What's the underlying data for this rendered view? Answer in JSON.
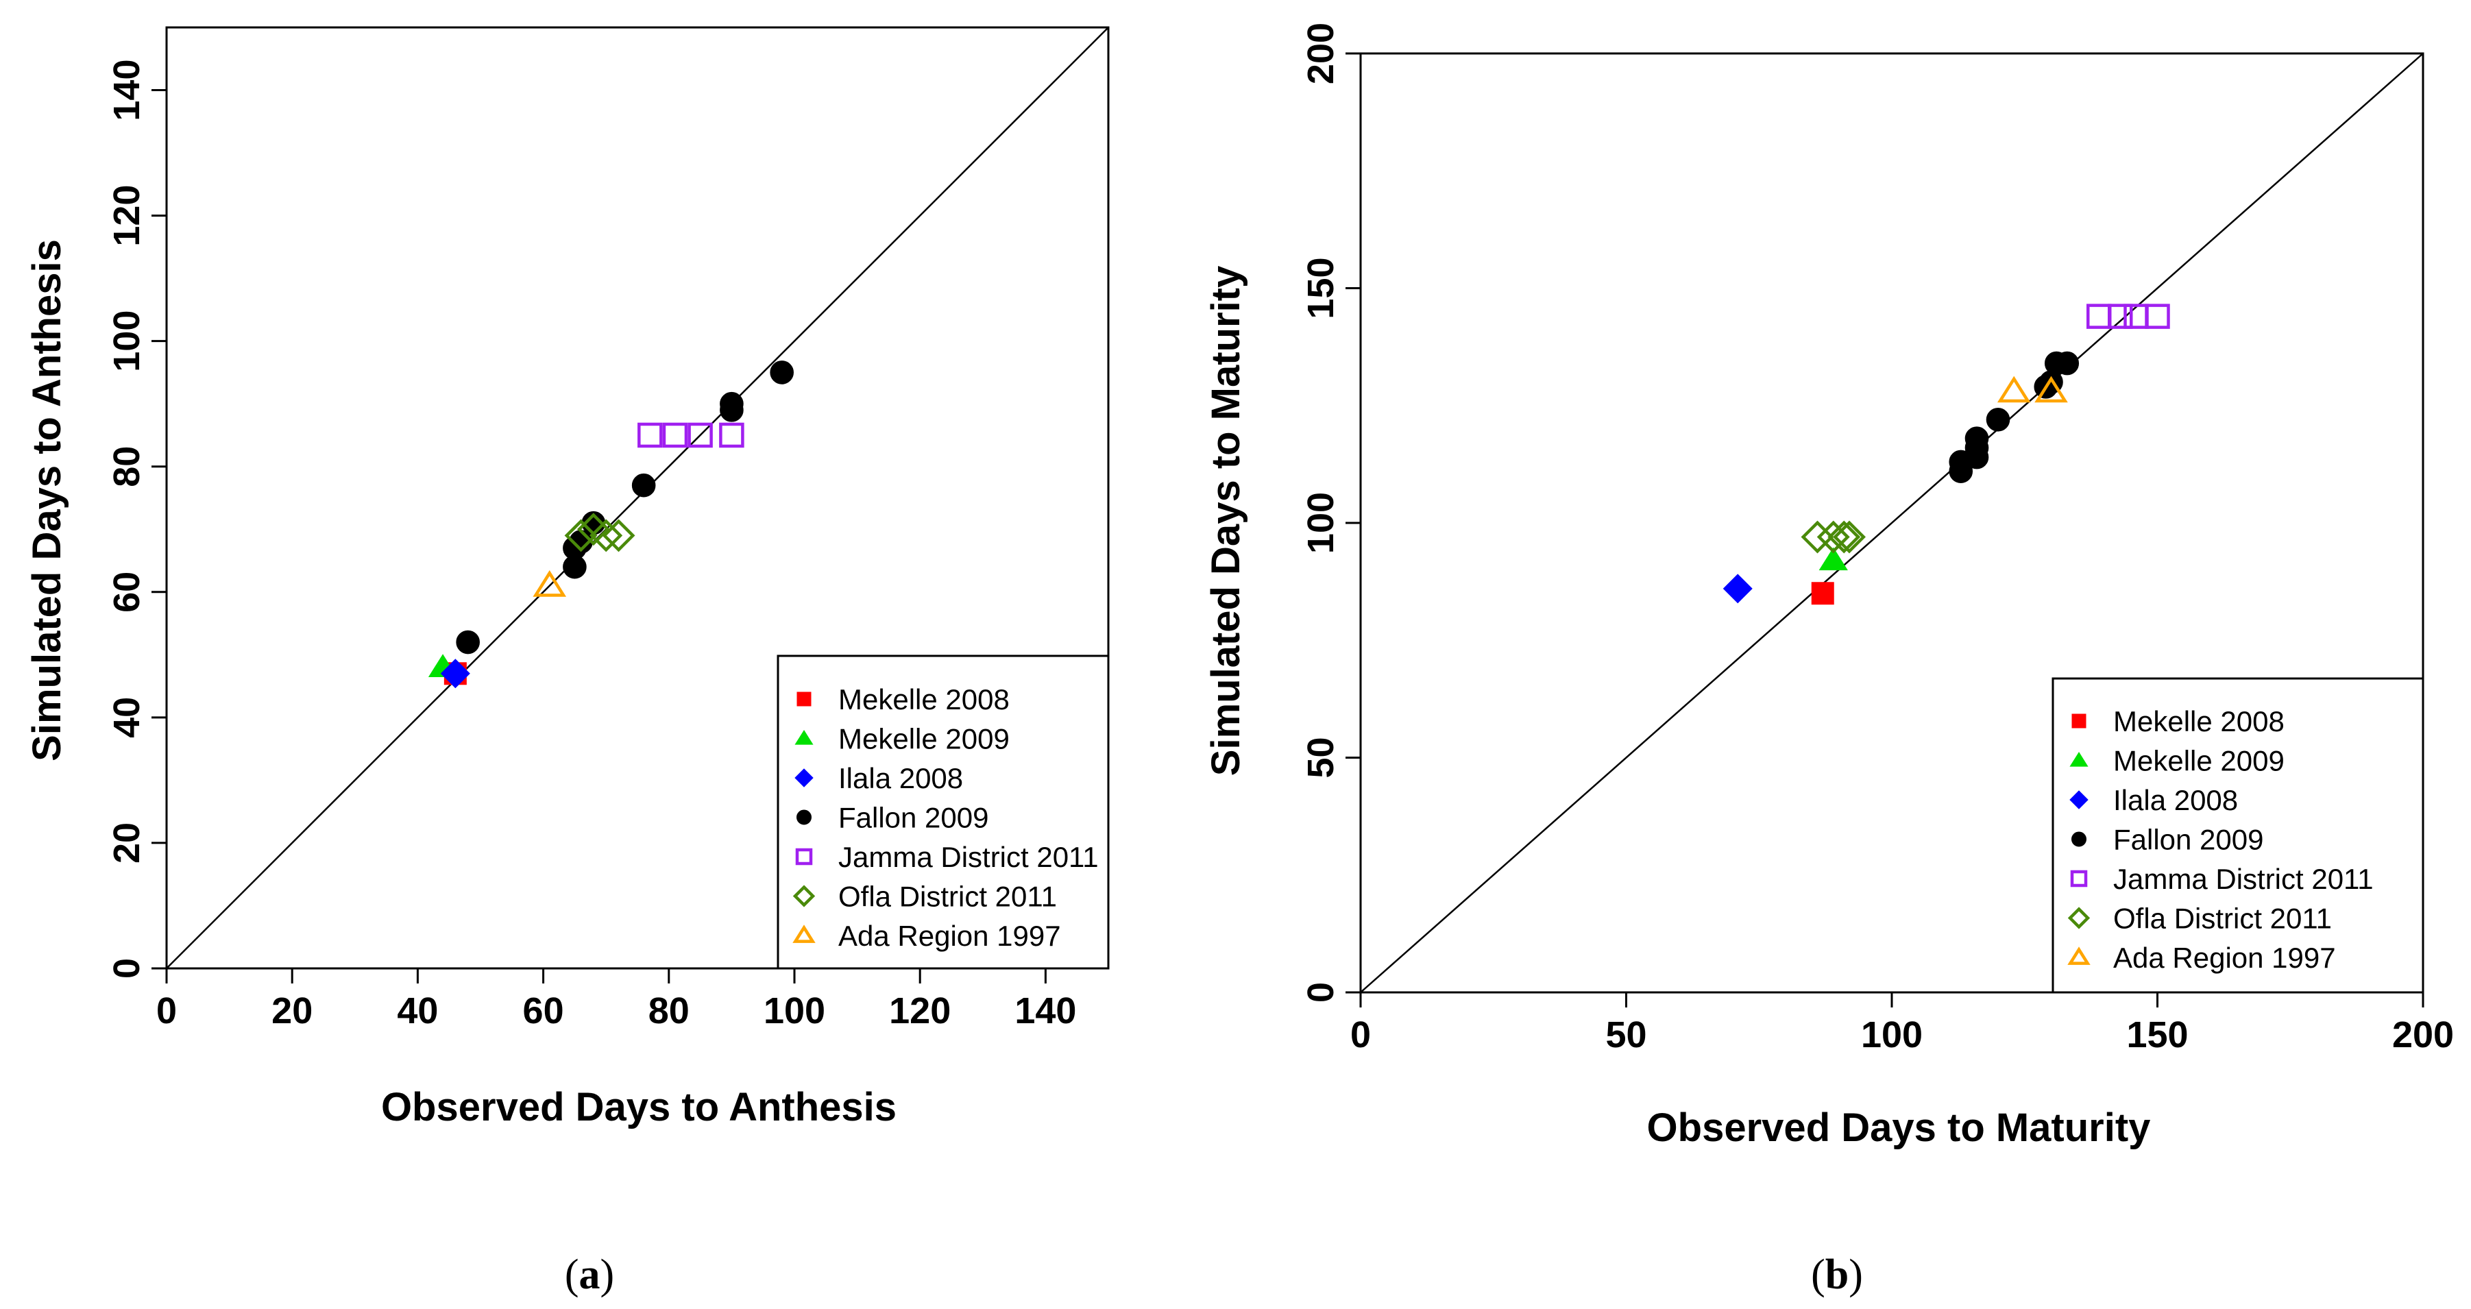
{
  "figure": {
    "panels": [
      {
        "label_open": "(",
        "label_letter": "a",
        "label_close": ")"
      },
      {
        "label_open": "(",
        "label_letter": "b",
        "label_close": ")"
      }
    ]
  },
  "chart_data": [
    {
      "type": "scatter",
      "panel": "a",
      "title": "",
      "xlabel": "Observed Days to Anthesis",
      "ylabel": "Simulated Days to Anthesis",
      "xlim": [
        0,
        150
      ],
      "ylim": [
        0,
        150
      ],
      "xticks": [
        0,
        20,
        40,
        60,
        80,
        100,
        120,
        140
      ],
      "yticks": [
        0,
        20,
        40,
        60,
        80,
        100,
        120,
        140
      ],
      "reference_line": "1:1",
      "legend_position": "bottom-right",
      "series": [
        {
          "name": "Mekelle 2008",
          "marker": "square-filled",
          "color": "#ff0000",
          "points": [
            [
              46,
              47
            ]
          ]
        },
        {
          "name": "Mekelle 2009",
          "marker": "triangle-filled",
          "color": "#00e000",
          "points": [
            [
              44,
              48
            ]
          ]
        },
        {
          "name": "Ilala 2008",
          "marker": "diamond-filled",
          "color": "#0000ff",
          "points": [
            [
              46,
              47
            ]
          ]
        },
        {
          "name": "Fallon 2009",
          "marker": "circle-filled",
          "color": "#000000",
          "points": [
            [
              48,
              52
            ],
            [
              65,
              64
            ],
            [
              65,
              67
            ],
            [
              66,
              68
            ],
            [
              68,
              71
            ],
            [
              76,
              77
            ],
            [
              90,
              89
            ],
            [
              90,
              90
            ],
            [
              98,
              95
            ]
          ]
        },
        {
          "name": "Jamma District 2011",
          "marker": "square-open",
          "color": "#a020f0",
          "points": [
            [
              77,
              85
            ],
            [
              81,
              85
            ],
            [
              85,
              85
            ],
            [
              90,
              85
            ]
          ]
        },
        {
          "name": "Ofla District 2011",
          "marker": "diamond-open",
          "color": "#4a8a0a",
          "points": [
            [
              66,
              69
            ],
            [
              68,
              70
            ],
            [
              70,
              69
            ],
            [
              72,
              69
            ]
          ]
        },
        {
          "name": "Ada Region 1997",
          "marker": "triangle-open",
          "color": "#ffa500",
          "points": [
            [
              61,
              61
            ]
          ]
        }
      ]
    },
    {
      "type": "scatter",
      "panel": "b",
      "title": "",
      "xlabel": "Observed Days to Maturity",
      "ylabel": "Simulated Days to Maturity",
      "xlim": [
        0,
        200
      ],
      "ylim": [
        0,
        200
      ],
      "xticks": [
        0,
        50,
        100,
        150,
        200
      ],
      "yticks": [
        0,
        50,
        100,
        150,
        200
      ],
      "reference_line": "1:1",
      "legend_position": "bottom-right",
      "series": [
        {
          "name": "Mekelle 2008",
          "marker": "square-filled",
          "color": "#ff0000",
          "points": [
            [
              87,
              85
            ]
          ]
        },
        {
          "name": "Mekelle 2009",
          "marker": "triangle-filled",
          "color": "#00e000",
          "points": [
            [
              89,
              92
            ]
          ]
        },
        {
          "name": "Ilala 2008",
          "marker": "diamond-filled",
          "color": "#0000ff",
          "points": [
            [
              71,
              86
            ]
          ]
        },
        {
          "name": "Fallon 2009",
          "marker": "circle-filled",
          "color": "#000000",
          "points": [
            [
              113,
              111
            ],
            [
              113,
              113
            ],
            [
              116,
              114
            ],
            [
              116,
              116
            ],
            [
              116,
              118
            ],
            [
              120,
              122
            ],
            [
              129,
              129
            ],
            [
              130,
              130
            ],
            [
              131,
              134
            ],
            [
              133,
              134
            ]
          ]
        },
        {
          "name": "Jamma District 2011",
          "marker": "square-open",
          "color": "#a020f0",
          "points": [
            [
              139,
              144
            ],
            [
              143,
              144
            ],
            [
              146,
              144
            ],
            [
              150,
              144
            ]
          ]
        },
        {
          "name": "Ofla District 2011",
          "marker": "diamond-open",
          "color": "#4a8a0a",
          "points": [
            [
              86,
              97
            ],
            [
              89,
              97
            ],
            [
              91,
              97
            ],
            [
              92,
              97
            ]
          ]
        },
        {
          "name": "Ada Region 1997",
          "marker": "triangle-open",
          "color": "#ffa500",
          "points": [
            [
              123,
              128
            ],
            [
              130,
              128
            ]
          ]
        }
      ]
    }
  ]
}
